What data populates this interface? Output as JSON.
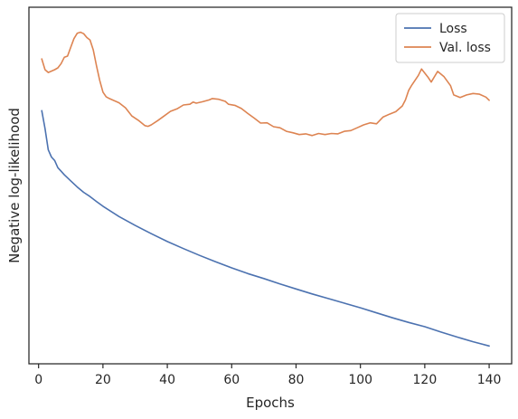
{
  "chart_data": {
    "type": "line",
    "xlabel": "Epochs",
    "ylabel": "Negative log-likelihood",
    "xlim": [
      -3,
      147
    ],
    "ylim": [
      0,
      100
    ],
    "xticks": [
      0,
      20,
      40,
      60,
      80,
      100,
      120,
      140
    ],
    "y_tick_labels_shown": false,
    "grid": false,
    "legend_position": "top-right",
    "series": [
      {
        "name": "Loss",
        "color": "#4c72b0",
        "x": [
          1,
          2,
          3,
          4,
          5,
          6,
          7,
          8,
          10,
          12,
          14,
          16,
          18,
          20,
          25,
          30,
          35,
          40,
          45,
          50,
          55,
          60,
          65,
          70,
          75,
          80,
          85,
          90,
          95,
          100,
          105,
          110,
          115,
          120,
          125,
          130,
          135,
          140
        ],
        "values": [
          71.0,
          66.0,
          60.0,
          58.0,
          57.0,
          55.0,
          54.0,
          53.0,
          51.3,
          49.6,
          48.1,
          46.9,
          45.5,
          44.2,
          41.3,
          38.8,
          36.5,
          34.3,
          32.3,
          30.4,
          28.6,
          26.9,
          25.3,
          23.9,
          22.4,
          21.0,
          19.6,
          18.3,
          17.0,
          15.7,
          14.3,
          12.9,
          11.6,
          10.4,
          8.9,
          7.5,
          6.2,
          5.0
        ]
      },
      {
        "name": "Val. loss",
        "color": "#dd8452",
        "x": [
          1,
          2,
          3,
          5,
          6,
          7,
          8,
          9,
          10,
          11,
          12,
          13,
          14,
          15,
          16,
          17,
          18,
          19,
          20,
          21,
          22,
          25,
          27,
          29,
          31,
          33,
          34,
          35,
          37,
          39,
          41,
          43,
          45,
          47,
          48,
          49,
          51,
          53,
          54,
          56,
          58,
          59,
          61,
          63,
          65,
          67,
          69,
          71,
          73,
          75,
          77,
          79,
          81,
          83,
          85,
          87,
          89,
          91,
          93,
          95,
          97,
          99,
          101,
          103,
          105,
          107,
          109,
          111,
          113,
          114,
          115,
          116,
          118,
          119,
          121,
          122,
          124,
          126,
          128,
          129,
          131,
          133,
          135,
          137,
          139,
          140
        ],
        "values": [
          85.5,
          82.5,
          81.7,
          82.5,
          83.0,
          84.2,
          86.0,
          86.3,
          88.8,
          91.2,
          92.7,
          93.0,
          92.6,
          91.5,
          90.8,
          88.0,
          83.5,
          79.5,
          76.2,
          74.9,
          74.4,
          73.2,
          71.8,
          69.5,
          68.3,
          66.8,
          66.6,
          67.0,
          68.2,
          69.5,
          70.8,
          71.5,
          72.6,
          72.8,
          73.4,
          73.1,
          73.5,
          74.0,
          74.4,
          74.2,
          73.6,
          72.8,
          72.5,
          71.6,
          70.2,
          68.9,
          67.5,
          67.6,
          66.5,
          66.2,
          65.2,
          64.8,
          64.3,
          64.5,
          64.0,
          64.6,
          64.3,
          64.6,
          64.5,
          65.2,
          65.4,
          66.2,
          67.0,
          67.6,
          67.3,
          69.2,
          70.0,
          70.7,
          72.3,
          74.0,
          76.7,
          78.2,
          80.9,
          82.7,
          80.4,
          79.0,
          82.0,
          80.5,
          78.0,
          75.4,
          74.7,
          75.4,
          75.8,
          75.6,
          74.8,
          73.9
        ]
      }
    ]
  }
}
